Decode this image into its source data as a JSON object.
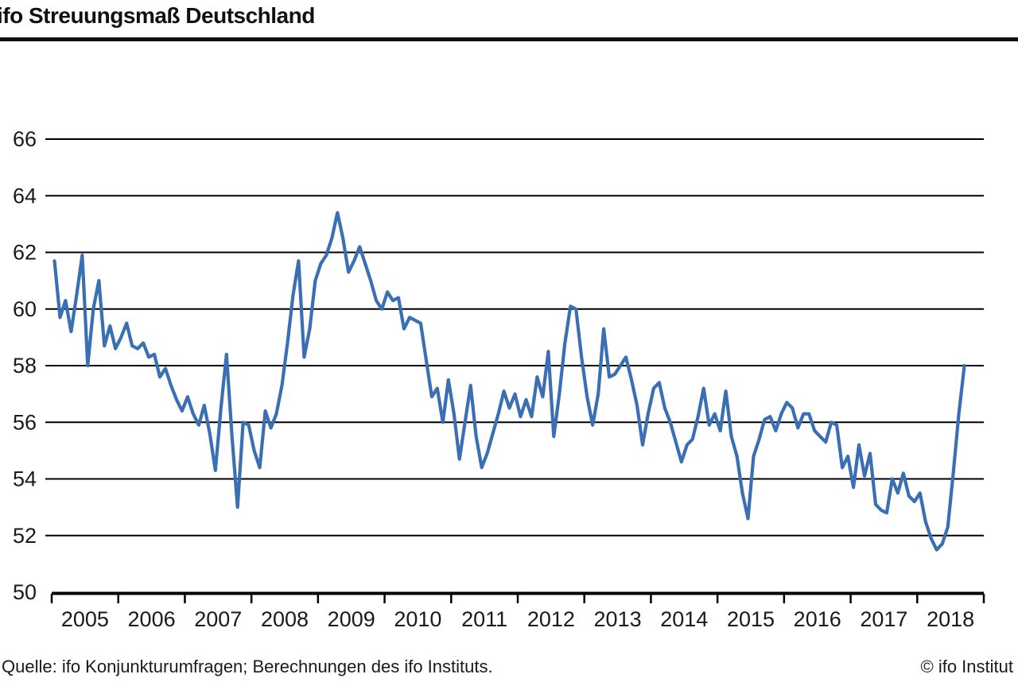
{
  "header": {
    "title": "ifo Streuungsmaß Deutschland"
  },
  "footer": {
    "source": "Quelle: ifo Konjunkturumfragen; Berechnungen des ifo Instituts.",
    "copyright": "© ifo Institut"
  },
  "colors": {
    "line": "#3a6fb3",
    "grid": "#000000",
    "axis": "#000000",
    "text": "#1a1a1a",
    "background": "#ffffff",
    "title_rule": "#111111"
  },
  "chart_data": {
    "type": "line",
    "title": "ifo Streuungsmaß Deutschland",
    "xlabel": "",
    "ylabel": "",
    "ylim": [
      50,
      66
    ],
    "y_ticks": [
      50,
      52,
      54,
      56,
      58,
      60,
      62,
      64,
      66
    ],
    "x_tick_years": [
      "2005",
      "2006",
      "2007",
      "2008",
      "2009",
      "2010",
      "2011",
      "2012",
      "2013",
      "2014",
      "2015",
      "2016",
      "2017",
      "2018"
    ],
    "grid": "horizontal solid black lines at every y tick",
    "legend": "none",
    "frequency": "monthly",
    "start": "2005-01",
    "end": "2018-09",
    "series": [
      {
        "name": "ifo Streuungsmaß",
        "monthly_values": [
          61.7,
          59.7,
          60.3,
          59.2,
          60.5,
          61.9,
          58.0,
          60.0,
          61.0,
          58.7,
          59.4,
          58.6,
          59.0,
          59.5,
          58.7,
          58.6,
          58.8,
          58.3,
          58.4,
          57.6,
          57.9,
          57.3,
          56.8,
          56.4,
          56.9,
          56.3,
          55.9,
          56.6,
          55.6,
          54.3,
          56.5,
          58.4,
          55.5,
          53.0,
          56.0,
          55.9,
          55.0,
          54.4,
          56.4,
          55.8,
          56.3,
          57.3,
          58.8,
          60.5,
          61.7,
          58.3,
          59.3,
          61.0,
          61.6,
          61.9,
          62.5,
          63.4,
          62.5,
          61.3,
          61.7,
          62.2,
          61.6,
          61.0,
          60.3,
          60.0,
          60.6,
          60.3,
          60.4,
          59.3,
          59.7,
          59.6,
          59.5,
          58.2,
          56.9,
          57.2,
          56.0,
          57.5,
          56.3,
          54.7,
          56.0,
          57.3,
          55.5,
          54.4,
          54.9,
          55.6,
          56.3,
          57.1,
          56.5,
          57.0,
          56.2,
          56.8,
          56.2,
          57.6,
          56.9,
          58.5,
          55.5,
          57.0,
          58.8,
          60.1,
          60.0,
          58.3,
          56.9,
          55.9,
          57.0,
          59.3,
          57.6,
          57.7,
          58.0,
          58.3,
          57.5,
          56.6,
          55.2,
          56.3,
          57.2,
          57.4,
          56.5,
          56.0,
          55.3,
          54.6,
          55.2,
          55.4,
          56.2,
          57.2,
          55.9,
          56.3,
          55.7,
          57.1,
          55.5,
          54.8,
          53.5,
          52.6,
          54.8,
          55.4,
          56.1,
          56.2,
          55.7,
          56.3,
          56.7,
          56.5,
          55.8,
          56.3,
          56.3,
          55.7,
          55.5,
          55.3,
          56.0,
          55.9,
          54.4,
          54.8,
          53.7,
          55.2,
          54.1,
          54.9,
          53.1,
          52.9,
          52.8,
          54.0,
          53.5,
          54.2,
          53.4,
          53.2,
          53.5,
          52.5,
          51.9,
          51.5,
          51.7,
          52.3,
          54.2,
          56.3,
          58.0
        ]
      }
    ]
  }
}
